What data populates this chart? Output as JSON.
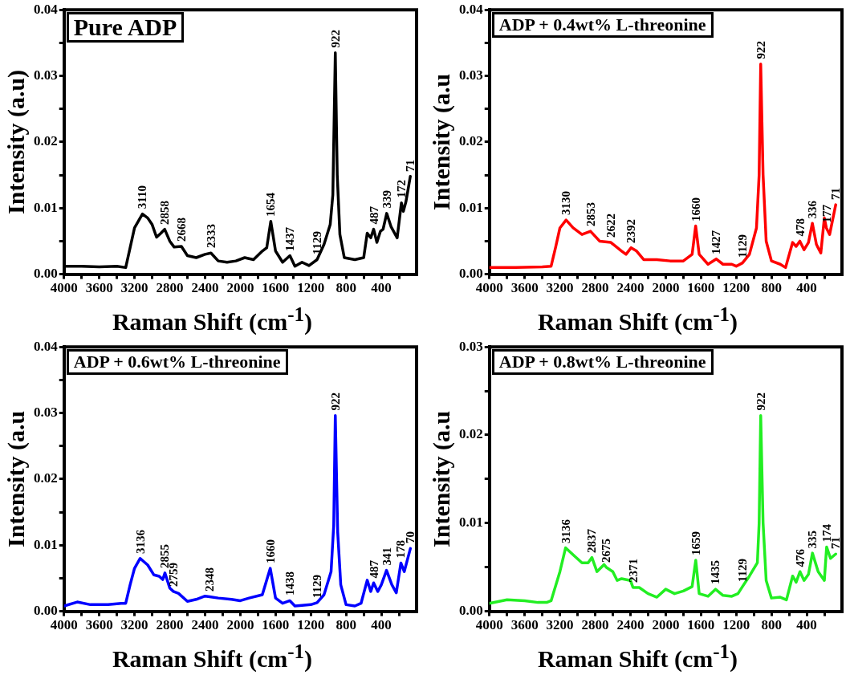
{
  "chart_data": [
    {
      "type": "line",
      "title": "Pure ADP",
      "xlabel": "Raman Shift (cm$^{-1}$)",
      "ylabel": "Intensity (a.u)",
      "xlim": [
        4000,
        0
      ],
      "ylim": [
        0,
        0.04
      ],
      "xticks": [
        4000,
        {
          "value": 3800,
          "label": null
        },
        3600,
        {
          "value": 3400,
          "label": null
        },
        3200,
        {
          "value": 3000,
          "label": null
        },
        2800,
        {
          "value": 2600,
          "label": null
        },
        2400,
        {
          "value": 2200,
          "label": null
        },
        2000,
        {
          "value": 1800,
          "label": null
        },
        1600,
        {
          "value": 1400,
          "label": null
        },
        1200,
        {
          "value": 1000,
          "label": null
        },
        800,
        {
          "value": 600,
          "label": null
        },
        400,
        {
          "value": 200,
          "label": null
        }
      ],
      "yticks": [
        {
          "value": 0,
          "label": "0.00"
        },
        {
          "value": 0.005,
          "label": null
        },
        {
          "value": 0.01,
          "label": "0.01"
        },
        {
          "value": 0.015,
          "label": null
        },
        {
          "value": 0.02,
          "label": "0.02"
        },
        {
          "value": 0.025,
          "label": null
        },
        {
          "value": 0.03,
          "label": "0.03"
        },
        {
          "value": 0.035,
          "label": null
        },
        {
          "value": 0.04,
          "label": "0.04"
        }
      ],
      "grid": false,
      "legend": false,
      "marker": "none",
      "line_style": "solid",
      "series": [
        {
          "color": "#000000",
          "x": [
            4000,
            3800,
            3600,
            3400,
            3300,
            3250,
            3200,
            3110,
            3050,
            3000,
            2950,
            2900,
            2858,
            2800,
            2750,
            2668,
            2600,
            2500,
            2400,
            2333,
            2250,
            2150,
            2050,
            1950,
            1850,
            1750,
            1700,
            1654,
            1600,
            1520,
            1437,
            1380,
            1300,
            1220,
            1129,
            1050,
            980,
            950,
            922,
            900,
            870,
            820,
            700,
            600,
            560,
            520,
            487,
            450,
            410,
            380,
            339,
            290,
            220,
            172,
            150,
            120,
            71
          ],
          "values": [
            0.0012,
            0.0012,
            0.0011,
            0.0012,
            0.001,
            0.004,
            0.007,
            0.0091,
            0.0085,
            0.0075,
            0.0056,
            0.0062,
            0.0068,
            0.005,
            0.0041,
            0.0042,
            0.0028,
            0.0025,
            0.003,
            0.0032,
            0.002,
            0.0018,
            0.002,
            0.0025,
            0.0022,
            0.0035,
            0.004,
            0.008,
            0.0035,
            0.0018,
            0.0028,
            0.0012,
            0.0018,
            0.0013,
            0.0022,
            0.0045,
            0.0075,
            0.012,
            0.0335,
            0.015,
            0.006,
            0.0025,
            0.0022,
            0.0025,
            0.0062,
            0.0055,
            0.0068,
            0.0048,
            0.0065,
            0.0068,
            0.0092,
            0.0072,
            0.0055,
            0.0108,
            0.0095,
            0.011,
            0.0148
          ]
        }
      ],
      "annotations": [
        {
          "text": "3110",
          "x": 3110,
          "y": 0.0091
        },
        {
          "text": "2858",
          "x": 2858,
          "y": 0.0068
        },
        {
          "text": "2668",
          "x": 2668,
          "y": 0.0042
        },
        {
          "text": "2333",
          "x": 2333,
          "y": 0.0032
        },
        {
          "text": "1654",
          "x": 1654,
          "y": 0.008
        },
        {
          "text": "1437",
          "x": 1437,
          "y": 0.0028
        },
        {
          "text": "1129",
          "x": 1129,
          "y": 0.0022
        },
        {
          "text": "922",
          "x": 922,
          "y": 0.0335
        },
        {
          "text": "487",
          "x": 487,
          "y": 0.0068
        },
        {
          "text": "339",
          "x": 339,
          "y": 0.0092
        },
        {
          "text": "172",
          "x": 172,
          "y": 0.0108
        },
        {
          "text": "71",
          "x": 71,
          "y": 0.0148
        }
      ]
    },
    {
      "type": "line",
      "title": "ADP + 0.4wt% L-threonine",
      "xlabel": "Raman Shift (cm$^{-1}$)",
      "ylabel": "Intensity (a.u",
      "xlim": [
        4000,
        0
      ],
      "ylim": [
        0,
        0.04
      ],
      "xticks": [
        4000,
        {
          "value": 3800,
          "label": null
        },
        3600,
        {
          "value": 3400,
          "label": null
        },
        3200,
        {
          "value": 3000,
          "label": null
        },
        2800,
        {
          "value": 2600,
          "label": null
        },
        2400,
        {
          "value": 2200,
          "label": null
        },
        2000,
        {
          "value": 1800,
          "label": null
        },
        1600,
        {
          "value": 1400,
          "label": null
        },
        1200,
        {
          "value": 1000,
          "label": null
        },
        800,
        {
          "value": 600,
          "label": null
        },
        400,
        {
          "value": 200,
          "label": null
        }
      ],
      "yticks": [
        {
          "value": 0,
          "label": "0.00"
        },
        {
          "value": 0.005,
          "label": null
        },
        {
          "value": 0.01,
          "label": "0.01"
        },
        {
          "value": 0.015,
          "label": null
        },
        {
          "value": 0.02,
          "label": "0.02"
        },
        {
          "value": 0.025,
          "label": null
        },
        {
          "value": 0.03,
          "label": "0.03"
        },
        {
          "value": 0.035,
          "label": null
        },
        {
          "value": 0.04,
          "label": "0.04"
        }
      ],
      "grid": false,
      "legend": false,
      "marker": "none",
      "line_style": "solid",
      "series": [
        {
          "color": "#ff0000",
          "x": [
            4000,
            3700,
            3400,
            3300,
            3250,
            3200,
            3130,
            3050,
            2950,
            2853,
            2750,
            2622,
            2500,
            2450,
            2392,
            2330,
            2250,
            2100,
            1950,
            1800,
            1700,
            1660,
            1620,
            1520,
            1427,
            1350,
            1250,
            1200,
            1129,
            1050,
            970,
            940,
            922,
            895,
            860,
            800,
            700,
            640,
            560,
            520,
            478,
            430,
            380,
            336,
            290,
            240,
            200,
            177,
            140,
            71
          ],
          "values": [
            0.001,
            0.001,
            0.0011,
            0.0012,
            0.004,
            0.007,
            0.0082,
            0.007,
            0.006,
            0.0065,
            0.005,
            0.0048,
            0.0035,
            0.003,
            0.004,
            0.0035,
            0.0022,
            0.0022,
            0.002,
            0.002,
            0.003,
            0.0073,
            0.003,
            0.0015,
            0.0023,
            0.0015,
            0.0015,
            0.0012,
            0.0017,
            0.003,
            0.007,
            0.015,
            0.0318,
            0.015,
            0.005,
            0.002,
            0.0015,
            0.001,
            0.0048,
            0.0042,
            0.005,
            0.0037,
            0.0048,
            0.0077,
            0.0045,
            0.0032,
            0.0085,
            0.007,
            0.006,
            0.0105
          ]
        }
      ],
      "annotations": [
        {
          "text": "3130",
          "x": 3130,
          "y": 0.0082
        },
        {
          "text": "2853",
          "x": 2853,
          "y": 0.0065
        },
        {
          "text": "2622",
          "x": 2622,
          "y": 0.0048
        },
        {
          "text": "2392",
          "x": 2392,
          "y": 0.004
        },
        {
          "text": "1660",
          "x": 1660,
          "y": 0.0073
        },
        {
          "text": "1427",
          "x": 1427,
          "y": 0.0023
        },
        {
          "text": "1129",
          "x": 1129,
          "y": 0.0017
        },
        {
          "text": "922",
          "x": 922,
          "y": 0.0318
        },
        {
          "text": "478",
          "x": 478,
          "y": 0.005
        },
        {
          "text": "336",
          "x": 336,
          "y": 0.0077
        },
        {
          "text": "177",
          "x": 177,
          "y": 0.007
        },
        {
          "text": "71",
          "x": 71,
          "y": 0.0105
        }
      ]
    },
    {
      "type": "line",
      "title": "ADP + 0.6wt% L-threonine",
      "xlabel": "Raman Shift (cm$^{-1}$)",
      "ylabel": "Intensity (a.u",
      "xlim": [
        4000,
        0
      ],
      "ylim": [
        0,
        0.04
      ],
      "xticks": [
        4000,
        {
          "value": 3800,
          "label": null
        },
        3600,
        {
          "value": 3400,
          "label": null
        },
        3200,
        {
          "value": 3000,
          "label": null
        },
        2800,
        {
          "value": 2600,
          "label": null
        },
        2400,
        {
          "value": 2200,
          "label": null
        },
        2000,
        {
          "value": 1800,
          "label": null
        },
        1600,
        {
          "value": 1400,
          "label": null
        },
        1200,
        {
          "value": 1000,
          "label": null
        },
        800,
        {
          "value": 600,
          "label": null
        },
        400,
        {
          "value": 200,
          "label": null
        }
      ],
      "yticks": [
        {
          "value": 0,
          "label": "0.00"
        },
        {
          "value": 0.005,
          "label": null
        },
        {
          "value": 0.01,
          "label": "0.01"
        },
        {
          "value": 0.015,
          "label": null
        },
        {
          "value": 0.02,
          "label": "0.02"
        },
        {
          "value": 0.025,
          "label": null
        },
        {
          "value": 0.03,
          "label": "0.03"
        },
        {
          "value": 0.035,
          "label": null
        },
        {
          "value": 0.04,
          "label": "0.04"
        }
      ],
      "grid": false,
      "legend": false,
      "marker": "none",
      "line_style": "solid",
      "series": [
        {
          "color": "#0000ff",
          "x": [
            4000,
            3850,
            3700,
            3500,
            3350,
            3300,
            3250,
            3200,
            3136,
            3050,
            2980,
            2920,
            2880,
            2855,
            2800,
            2759,
            2700,
            2600,
            2500,
            2400,
            2348,
            2250,
            2100,
            2000,
            1900,
            1750,
            1660,
            1600,
            1520,
            1438,
            1380,
            1300,
            1200,
            1129,
            1050,
            970,
            940,
            922,
            895,
            860,
            800,
            700,
            630,
            560,
            520,
            487,
            440,
            400,
            341,
            280,
            230,
            178,
            140,
            70
          ],
          "values": [
            0.0008,
            0.0014,
            0.001,
            0.001,
            0.0012,
            0.0012,
            0.004,
            0.0065,
            0.008,
            0.007,
            0.0055,
            0.0053,
            0.0048,
            0.0058,
            0.0035,
            0.003,
            0.0027,
            0.0015,
            0.0018,
            0.0023,
            0.0022,
            0.002,
            0.0018,
            0.0016,
            0.002,
            0.0025,
            0.0065,
            0.002,
            0.0012,
            0.0016,
            0.0008,
            0.0009,
            0.001,
            0.0013,
            0.0025,
            0.006,
            0.013,
            0.0296,
            0.012,
            0.004,
            0.001,
            0.0008,
            0.0012,
            0.0047,
            0.003,
            0.0043,
            0.003,
            0.004,
            0.0062,
            0.004,
            0.0028,
            0.0073,
            0.006,
            0.0095
          ]
        }
      ],
      "annotations": [
        {
          "text": "3136",
          "x": 3136,
          "y": 0.008
        },
        {
          "text": "2855",
          "x": 2855,
          "y": 0.0058
        },
        {
          "text": "2759",
          "x": 2759,
          "y": 0.003
        },
        {
          "text": "2348",
          "x": 2348,
          "y": 0.0022
        },
        {
          "text": "1660",
          "x": 1660,
          "y": 0.0065
        },
        {
          "text": "1438",
          "x": 1438,
          "y": 0.0016
        },
        {
          "text": "1129",
          "x": 1129,
          "y": 0.0013
        },
        {
          "text": "922",
          "x": 922,
          "y": 0.0296
        },
        {
          "text": "487",
          "x": 487,
          "y": 0.0043
        },
        {
          "text": "341",
          "x": 341,
          "y": 0.0062
        },
        {
          "text": "178",
          "x": 178,
          "y": 0.0073
        },
        {
          "text": "70",
          "x": 70,
          "y": 0.0095
        }
      ]
    },
    {
      "type": "line",
      "title": "ADP + 0.8wt% L-threonine",
      "xlabel": "Raman Shift (cm$^{-1}$)",
      "ylabel": "Intensity (a.u",
      "xlim": [
        4000,
        0
      ],
      "ylim": [
        0,
        0.03
      ],
      "xticks": [
        4000,
        {
          "value": 3800,
          "label": null
        },
        3600,
        {
          "value": 3400,
          "label": null
        },
        3200,
        {
          "value": 3000,
          "label": null
        },
        2800,
        {
          "value": 2600,
          "label": null
        },
        2400,
        {
          "value": 2200,
          "label": null
        },
        2000,
        {
          "value": 1800,
          "label": null
        },
        1600,
        {
          "value": 1400,
          "label": null
        },
        1200,
        {
          "value": 1000,
          "label": null
        },
        800,
        {
          "value": 600,
          "label": null
        },
        400,
        {
          "value": 200,
          "label": null
        }
      ],
      "yticks": [
        {
          "value": 0,
          "label": "0.00"
        },
        {
          "value": 0.005,
          "label": null
        },
        {
          "value": 0.01,
          "label": "0.01"
        },
        {
          "value": 0.015,
          "label": null
        },
        {
          "value": 0.02,
          "label": "0.02"
        },
        {
          "value": 0.025,
          "label": null
        },
        {
          "value": 0.03,
          "label": "0.03"
        }
      ],
      "grid": false,
      "legend": false,
      "marker": "none",
      "line_style": "solid",
      "series": [
        {
          "color": "#22ee22",
          "x": [
            4000,
            3800,
            3600,
            3450,
            3350,
            3300,
            3200,
            3136,
            3050,
            2950,
            2880,
            2837,
            2780,
            2700,
            2675,
            2600,
            2550,
            2500,
            2400,
            2371,
            2300,
            2200,
            2100,
            2000,
            1900,
            1800,
            1700,
            1659,
            1620,
            1520,
            1435,
            1350,
            1250,
            1180,
            1129,
            1050,
            960,
            940,
            922,
            895,
            860,
            800,
            700,
            630,
            560,
            520,
            476,
            430,
            380,
            335,
            270,
            200,
            174,
            130,
            71
          ],
          "values": [
            0.0009,
            0.0013,
            0.0012,
            0.001,
            0.001,
            0.0012,
            0.0045,
            0.0072,
            0.0064,
            0.0055,
            0.0055,
            0.0061,
            0.0045,
            0.0053,
            0.005,
            0.0045,
            0.0035,
            0.0037,
            0.0035,
            0.0027,
            0.0027,
            0.002,
            0.0016,
            0.0025,
            0.002,
            0.0023,
            0.0028,
            0.0058,
            0.002,
            0.0017,
            0.0025,
            0.0018,
            0.0017,
            0.002,
            0.0028,
            0.004,
            0.0055,
            0.01,
            0.0222,
            0.01,
            0.0035,
            0.0015,
            0.0016,
            0.0013,
            0.004,
            0.0033,
            0.0045,
            0.0035,
            0.0042,
            0.0066,
            0.0045,
            0.0035,
            0.0073,
            0.006,
            0.0065
          ]
        }
      ],
      "annotations": [
        {
          "text": "3136",
          "x": 3136,
          "y": 0.0072
        },
        {
          "text": "2837",
          "x": 2837,
          "y": 0.0061
        },
        {
          "text": "2675",
          "x": 2675,
          "y": 0.005
        },
        {
          "text": "2371",
          "x": 2371,
          "y": 0.0027
        },
        {
          "text": "1659",
          "x": 1659,
          "y": 0.0058
        },
        {
          "text": "1435",
          "x": 1435,
          "y": 0.0025
        },
        {
          "text": "1129",
          "x": 1129,
          "y": 0.0028
        },
        {
          "text": "922",
          "x": 922,
          "y": 0.0222
        },
        {
          "text": "476",
          "x": 476,
          "y": 0.0045
        },
        {
          "text": "335",
          "x": 335,
          "y": 0.0066
        },
        {
          "text": "174",
          "x": 174,
          "y": 0.0073
        },
        {
          "text": "71",
          "x": 71,
          "y": 0.0065
        }
      ]
    }
  ]
}
